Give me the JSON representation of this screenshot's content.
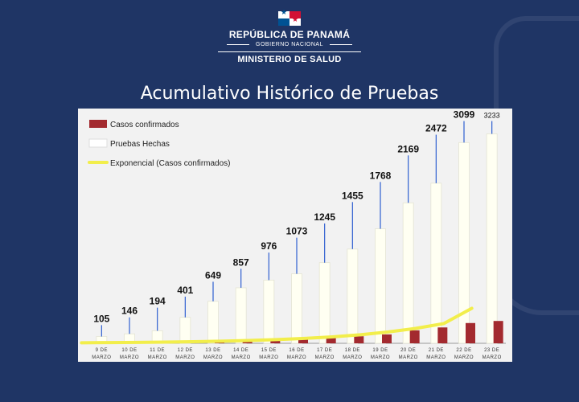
{
  "header": {
    "country": "REPÚBLICA DE PANAMÁ",
    "government": "GOBIERNO NACIONAL",
    "ministry": "MINISTERIO DE SALUD"
  },
  "page_title": "Acumulativo Histórico de Pruebas",
  "colors": {
    "background": "#1f3565",
    "confirmed": "#a32a2f",
    "tests_fill": "#fffff2",
    "exponential": "#f2ee4b",
    "leader": "#2f5fd0"
  },
  "chart_data": {
    "type": "bar",
    "title": "",
    "xlabel": "",
    "ylabel": "",
    "ylim": [
      0,
      3500
    ],
    "yticks": [
      0,
      500,
      1000,
      1500,
      2000,
      2500,
      3000,
      3500
    ],
    "grid": false,
    "legend_position": "top-left",
    "categories": [
      [
        "9 DE",
        "MARZO"
      ],
      [
        "10 DE",
        "MARZO"
      ],
      [
        "11 DE",
        "MARZO"
      ],
      [
        "12 DE",
        "MARZO"
      ],
      [
        "13 DE",
        "MARZO"
      ],
      [
        "14 DE",
        "MARZO"
      ],
      [
        "15 DE",
        "MARZO"
      ],
      [
        "16 DE",
        "MARZO"
      ],
      [
        "17 DE",
        "MARZO"
      ],
      [
        "18 DE",
        "MARZO"
      ],
      [
        "19 DE",
        "MARZO"
      ],
      [
        "20 DE",
        "MARZO"
      ],
      [
        "21 DE",
        "MARZO"
      ],
      [
        "22 DE",
        "MARZO"
      ],
      [
        "23 DE",
        "MARZO"
      ]
    ],
    "series": [
      {
        "name": "Casos confirmados",
        "kind": "bar",
        "color": "#a32a2f",
        "values": [
          1,
          8,
          11,
          27,
          36,
          43,
          55,
          69,
          86,
          109,
          137,
          200,
          245,
          313,
          345
        ]
      },
      {
        "name": "Pruebas Hechas",
        "kind": "bar",
        "color": "#fffff2",
        "values": [
          105,
          146,
          194,
          401,
          649,
          857,
          976,
          1073,
          1245,
          1455,
          1768,
          2169,
          2472,
          3099,
          3233
        ]
      },
      {
        "name": "Exponencial (Casos confirmados)",
        "kind": "line",
        "color": "#f2ee4b",
        "values": [
          8,
          11,
          14,
          19,
          25,
          33,
          44,
          58,
          76,
          100,
          132,
          175,
          231,
          305,
          540
        ]
      }
    ],
    "data_labels": [
      "105",
      "146",
      "194",
      "401",
      "649",
      "857",
      "976",
      "1073",
      "1245",
      "1455",
      "1768",
      "2169",
      "2472",
      "3099",
      "3233"
    ],
    "label_values": [
      330,
      450,
      600,
      770,
      1000,
      1200,
      1450,
      1680,
      1900,
      2230,
      2540,
      2950,
      3270,
      3480,
      3480
    ]
  }
}
